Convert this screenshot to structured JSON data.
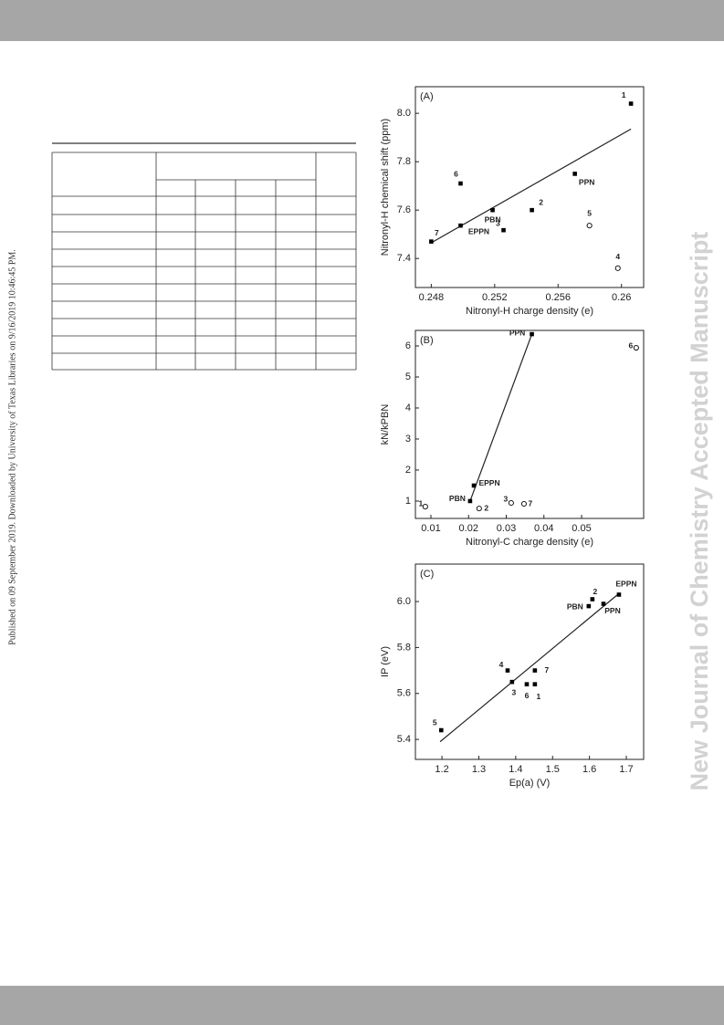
{
  "side_note": "Published on 09 September 2019. Downloaded by University of Texas Libraries on 9/16/2019 10:46:45 PM.",
  "watermark": "New Journal of Chemistry Accepted Manuscript",
  "chart_data": [
    {
      "type": "scatter",
      "panel_label": "(A)",
      "xlabel": "Nitronyl-H charge density (e)",
      "ylabel": "Nitronyl-H chemical shift (ppm)",
      "xlim": [
        0.247,
        0.2614
      ],
      "ylim": [
        7.28,
        8.11
      ],
      "xticks": [
        0.248,
        0.252,
        0.256,
        0.26
      ],
      "yticks": [
        7.4,
        7.6,
        7.8,
        {
          "value": 8,
          "label": "8.0"
        }
      ],
      "series": [
        {
          "marker": "filled",
          "color": "#000000",
          "labels": [
            "1",
            "PPN",
            "6",
            "2",
            "PBN",
            "3",
            "EPPN",
            "7"
          ],
          "x": [
            0.2606,
            0.25706,
            0.24985,
            0.25435,
            0.25187,
            0.25256,
            0.24985,
            0.248
          ],
          "values": [
            8.04,
            7.75,
            7.71,
            7.6,
            7.6,
            7.517,
            7.536,
            7.47
          ]
        },
        {
          "marker": "open",
          "color": "#000000",
          "labels": [
            "5",
            "4"
          ],
          "x": [
            0.25798,
            0.25977
          ],
          "values": [
            7.536,
            7.36
          ]
        }
      ],
      "fit_line": {
        "x": [
          0.248,
          0.2606
        ],
        "values": [
          7.465,
          7.935
        ]
      }
    },
    {
      "type": "scatter",
      "panel_label": "(B)",
      "xlabel": "Nitronyl-C charge density (e)",
      "ylabel": "kN/kPBN",
      "xlim": [
        0.00588,
        0.06648
      ],
      "ylim": [
        0.44,
        6.5
      ],
      "xticks": [
        0.01,
        0.02,
        0.03,
        0.04,
        0.05
      ],
      "yticks": [
        1,
        2,
        3,
        4,
        5,
        6
      ],
      "series": [
        {
          "marker": "filled",
          "color": "#000000",
          "labels": [
            "PPN",
            "EPPN",
            "PBN"
          ],
          "x": [
            0.0368,
            0.0214,
            0.0204
          ],
          "values": [
            6.38,
            1.5,
            1.0
          ]
        },
        {
          "marker": "open",
          "color": "#000000",
          "labels": [
            "6",
            "1",
            "2",
            "3",
            "7"
          ],
          "x": [
            0.0645,
            0.0085,
            0.0228,
            0.0313,
            0.0347
          ],
          "values": [
            5.94,
            0.82,
            0.76,
            0.94,
            0.91
          ]
        }
      ],
      "fit_line": {
        "x": [
          0.0204,
          0.0368
        ],
        "values": [
          1.0,
          6.38
        ]
      }
    },
    {
      "type": "scatter",
      "panel_label": "(C)",
      "xlabel": "Ep(a) (V)",
      "ylabel": "IP (eV)",
      "xlim": [
        1.128,
        1.747
      ],
      "ylim": [
        5.313,
        6.163
      ],
      "xticks": [
        1.2,
        1.3,
        1.4,
        1.5,
        1.6,
        1.7
      ],
      "yticks": [
        5.4,
        5.6,
        5.8,
        {
          "value": 6,
          "label": "6.0"
        }
      ],
      "series": [
        {
          "marker": "filled",
          "color": "#000000",
          "labels": [
            "EPPN",
            "PPN",
            "2",
            "PBN",
            "4",
            "7",
            "3",
            "6",
            "1",
            "5"
          ],
          "x": [
            1.68,
            1.638,
            1.608,
            1.598,
            1.378,
            1.452,
            1.39,
            1.43,
            1.452,
            1.198
          ],
          "values": [
            6.03,
            5.99,
            6.01,
            5.98,
            5.7,
            5.7,
            5.65,
            5.64,
            5.64,
            5.44
          ]
        }
      ],
      "fit_line": {
        "x": [
          1.195,
          1.68
        ],
        "values": [
          5.39,
          6.035
        ]
      }
    }
  ]
}
